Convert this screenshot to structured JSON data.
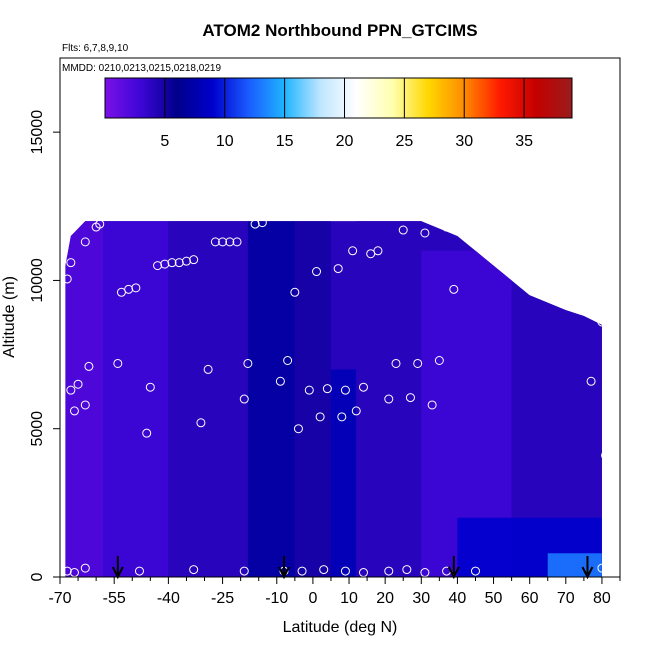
{
  "chart_data": {
    "type": "heatmap",
    "title": "ATOM2 Northbound PPN_GTCIMS",
    "flights_note": "Flts: 6,7,8,9,10",
    "dates_note": "MMDD: 0210,0213,0215,0218,0219",
    "xlabel": "Latitude (deg N)",
    "ylabel": "Altitude (m)",
    "xlim": [
      -70,
      85
    ],
    "ylim": [
      0,
      17500
    ],
    "xticks": [
      -70,
      -55,
      -40,
      -25,
      -10,
      0,
      10,
      20,
      30,
      40,
      50,
      60,
      70,
      80
    ],
    "yticks": [
      0,
      5000,
      10000,
      15000
    ],
    "colorbar": {
      "range": [
        0,
        39
      ],
      "ticks": [
        5,
        10,
        15,
        20,
        25,
        30,
        35
      ],
      "colors": [
        "#7a10e8",
        "#3d06d6",
        "#00008a",
        "#0000cc",
        "#1a5cff",
        "#1fb4ff",
        "#bfe6ff",
        "#ffffff",
        "#ffffb0",
        "#ffd700",
        "#ff8a00",
        "#ff1a00",
        "#c40000",
        "#9a1c1c"
      ]
    },
    "arrows_lat": [
      -54,
      -8,
      39,
      76
    ],
    "altitude_envelope": [
      [
        -68.5,
        10500
      ],
      [
        -67,
        11500
      ],
      [
        -63,
        12000
      ],
      [
        -40,
        12000
      ],
      [
        -30,
        12000
      ],
      [
        -20,
        12000
      ],
      [
        -5,
        12000
      ],
      [
        10,
        12000
      ],
      [
        30,
        12000
      ],
      [
        40,
        11500
      ],
      [
        45,
        11000
      ],
      [
        50,
        10500
      ],
      [
        55,
        10000
      ],
      [
        60,
        9500
      ],
      [
        70,
        9000
      ],
      [
        75,
        8800
      ],
      [
        80,
        8500
      ]
    ],
    "field_regions": [
      {
        "lat": [
          -69,
          -58
        ],
        "alt": [
          0,
          12000
        ],
        "value": 2
      },
      {
        "lat": [
          -58,
          -40
        ],
        "alt": [
          0,
          12000
        ],
        "value": 3
      },
      {
        "lat": [
          -40,
          -18
        ],
        "alt": [
          0,
          12000
        ],
        "value": 4
      },
      {
        "lat": [
          -18,
          -5
        ],
        "alt": [
          0,
          12000
        ],
        "value": 7
      },
      {
        "lat": [
          -5,
          5
        ],
        "alt": [
          0,
          12000
        ],
        "value": 5
      },
      {
        "lat": [
          5,
          12
        ],
        "alt": [
          0,
          7000
        ],
        "value": 8
      },
      {
        "lat": [
          12,
          30
        ],
        "alt": [
          0,
          12000
        ],
        "value": 4
      },
      {
        "lat": [
          30,
          55
        ],
        "alt": [
          0,
          11000
        ],
        "value": 3
      },
      {
        "lat": [
          55,
          80
        ],
        "alt": [
          2000,
          9500
        ],
        "value": 4
      },
      {
        "lat": [
          40,
          80
        ],
        "alt": [
          0,
          2000
        ],
        "value": 9
      },
      {
        "lat": [
          65,
          80
        ],
        "alt": [
          0,
          800
        ],
        "value": 13
      }
    ],
    "observations": [
      {
        "lat": -68,
        "alt": 10050
      },
      {
        "lat": -67,
        "alt": 10600
      },
      {
        "lat": -67,
        "alt": 6300
      },
      {
        "lat": -66,
        "alt": 5600
      },
      {
        "lat": -65,
        "alt": 6500
      },
      {
        "lat": -63,
        "alt": 11300
      },
      {
        "lat": -63,
        "alt": 5800
      },
      {
        "lat": -62,
        "alt": 7100
      },
      {
        "lat": -60,
        "alt": 11800
      },
      {
        "lat": -59,
        "alt": 11900
      },
      {
        "lat": -54,
        "alt": 7200
      },
      {
        "lat": -53,
        "alt": 9600
      },
      {
        "lat": -51,
        "alt": 9700
      },
      {
        "lat": -49,
        "alt": 9750
      },
      {
        "lat": -46,
        "alt": 4850
      },
      {
        "lat": -45,
        "alt": 6400
      },
      {
        "lat": -43,
        "alt": 10500
      },
      {
        "lat": -41,
        "alt": 10550
      },
      {
        "lat": -39,
        "alt": 10600
      },
      {
        "lat": -37,
        "alt": 10600
      },
      {
        "lat": -35,
        "alt": 10650
      },
      {
        "lat": -33,
        "alt": 10700
      },
      {
        "lat": -31,
        "alt": 5200
      },
      {
        "lat": -29,
        "alt": 7000
      },
      {
        "lat": -27,
        "alt": 11300
      },
      {
        "lat": -25,
        "alt": 11300
      },
      {
        "lat": -23,
        "alt": 11300
      },
      {
        "lat": -21,
        "alt": 11300
      },
      {
        "lat": -19,
        "alt": 6000
      },
      {
        "lat": -18,
        "alt": 7200
      },
      {
        "lat": -16,
        "alt": 11900
      },
      {
        "lat": -14,
        "alt": 11950
      },
      {
        "lat": -9,
        "alt": 6600
      },
      {
        "lat": -7,
        "alt": 7300
      },
      {
        "lat": -5,
        "alt": 9600
      },
      {
        "lat": -4,
        "alt": 5000
      },
      {
        "lat": -1,
        "alt": 6300
      },
      {
        "lat": 1,
        "alt": 10300
      },
      {
        "lat": 2,
        "alt": 5400
      },
      {
        "lat": 4,
        "alt": 6350
      },
      {
        "lat": 7,
        "alt": 10400
      },
      {
        "lat": 8,
        "alt": 5400
      },
      {
        "lat": 9,
        "alt": 6300
      },
      {
        "lat": 11,
        "alt": 11000
      },
      {
        "lat": 12,
        "alt": 5600
      },
      {
        "lat": 14,
        "alt": 6400
      },
      {
        "lat": 16,
        "alt": 10900
      },
      {
        "lat": 18,
        "alt": 11000
      },
      {
        "lat": 21,
        "alt": 6000
      },
      {
        "lat": 23,
        "alt": 7200
      },
      {
        "lat": 25,
        "alt": 11700
      },
      {
        "lat": 27,
        "alt": 6050
      },
      {
        "lat": 29,
        "alt": 7200
      },
      {
        "lat": 31,
        "alt": 11600
      },
      {
        "lat": 33,
        "alt": 5800
      },
      {
        "lat": 35,
        "alt": 7300
      },
      {
        "lat": 37,
        "alt": 11800
      },
      {
        "lat": 39,
        "alt": 9700
      },
      {
        "lat": 77,
        "alt": 6600
      },
      {
        "lat": 80,
        "alt": 8600
      },
      {
        "lat": 81,
        "alt": 4100
      },
      {
        "lat": -68,
        "alt": 200
      },
      {
        "lat": -66,
        "alt": 150
      },
      {
        "lat": -63,
        "alt": 300
      },
      {
        "lat": -48,
        "alt": 200
      },
      {
        "lat": -33,
        "alt": 250
      },
      {
        "lat": -19,
        "alt": 200
      },
      {
        "lat": -8,
        "alt": 200
      },
      {
        "lat": -3,
        "alt": 200
      },
      {
        "lat": 3,
        "alt": 250
      },
      {
        "lat": 9,
        "alt": 200
      },
      {
        "lat": 14,
        "alt": 150
      },
      {
        "lat": 21,
        "alt": 200
      },
      {
        "lat": 26,
        "alt": 250
      },
      {
        "lat": 31,
        "alt": 150
      },
      {
        "lat": 37,
        "alt": 200
      },
      {
        "lat": 45,
        "alt": 200
      },
      {
        "lat": 80,
        "alt": 300
      }
    ]
  }
}
